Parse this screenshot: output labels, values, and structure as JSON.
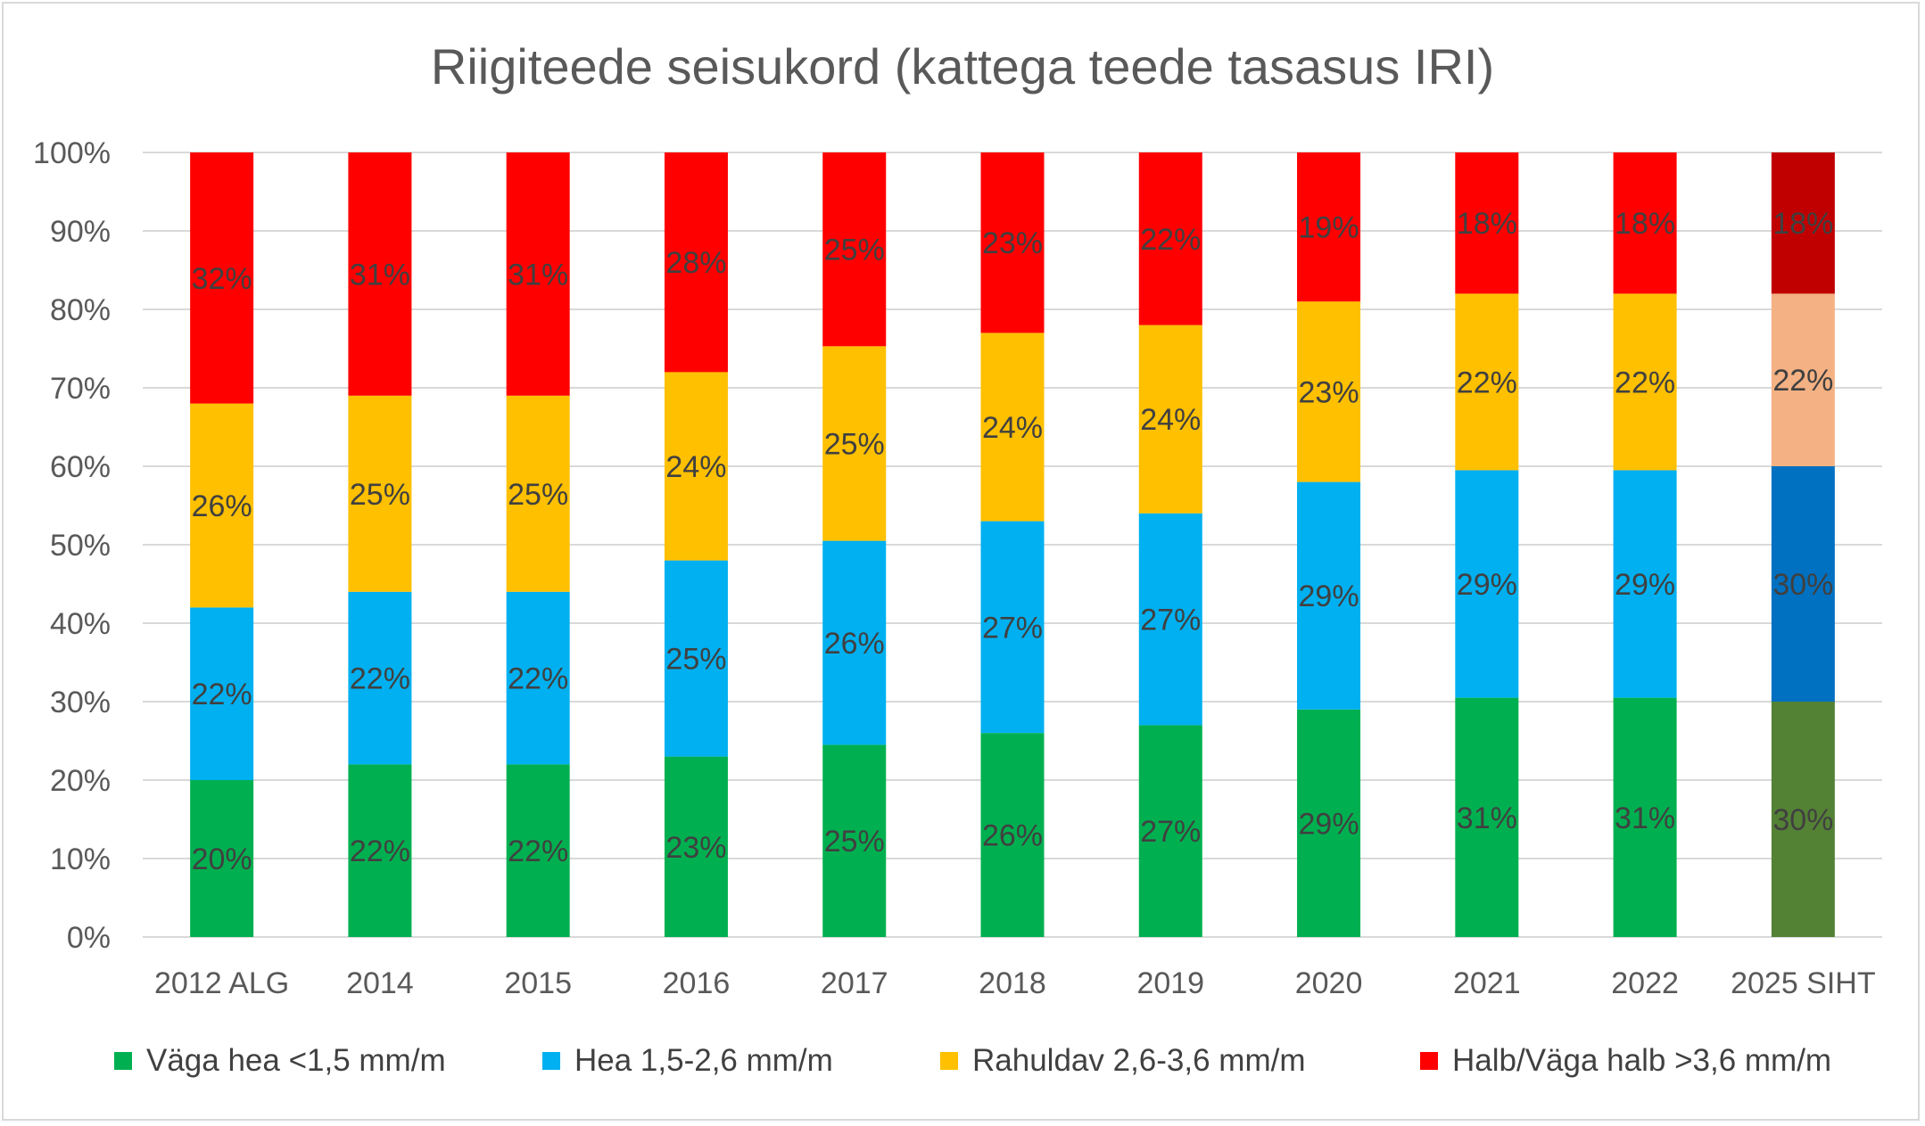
{
  "chart_data": {
    "type": "bar",
    "stacked": true,
    "title": "Riigiteede  seisukord (kattega teede tasasus IRI)",
    "xlabel": "",
    "ylabel": "",
    "ylim": [
      0,
      100
    ],
    "y_ticks": [
      "0%",
      "10%",
      "20%",
      "30%",
      "40%",
      "50%",
      "60%",
      "70%",
      "80%",
      "90%",
      "100%"
    ],
    "grid": true,
    "legend_position": "bottom",
    "categories": [
      "2012 ALG",
      "2014",
      "2015",
      "2016",
      "2017",
      "2018",
      "2019",
      "2020",
      "2021",
      "2022",
      "2025 SIHT"
    ],
    "series": [
      {
        "name": "Väga hea <1,5 mm/m",
        "color": "#00b050",
        "values": [
          20,
          22,
          22,
          23,
          24.5,
          26,
          27,
          29,
          30.5,
          30.5,
          30
        ],
        "labels": [
          "20%",
          "22%",
          "22%",
          "23%",
          "25%",
          "26%",
          "27%",
          "29%",
          "31%",
          "31%",
          "30%"
        ]
      },
      {
        "name": "Hea 1,5-2,6 mm/m",
        "color": "#00b0f0",
        "values": [
          22,
          22,
          22,
          25,
          26,
          27,
          27,
          29,
          29,
          29,
          30
        ],
        "labels": [
          "22%",
          "22%",
          "22%",
          "25%",
          "26%",
          "27%",
          "27%",
          "29%",
          "29%",
          "29%",
          "30%"
        ]
      },
      {
        "name": "Rahuldav 2,6-3,6 mm/m",
        "color": "#ffc000",
        "values": [
          26,
          25,
          25,
          24,
          24.8,
          24,
          24,
          23,
          22.5,
          22.5,
          22
        ],
        "labels": [
          "26%",
          "25%",
          "25%",
          "24%",
          "25%",
          "24%",
          "24%",
          "23%",
          "22%",
          "22%",
          "22%"
        ]
      },
      {
        "name": "Halb/Väga halb >3,6 mm/m",
        "color": "#ff0000",
        "values": [
          32,
          31,
          31,
          28,
          24.7,
          23,
          22,
          19,
          18,
          18,
          18
        ],
        "labels": [
          "32%",
          "31%",
          "31%",
          "28%",
          "25%",
          "23%",
          "22%",
          "19%",
          "18%",
          "18%",
          "18%"
        ]
      }
    ],
    "target_category_colors": [
      "#548235",
      "#0070c0",
      "#f4b183",
      "#c00000"
    ],
    "label_color": "#404040",
    "axis_text_color": "#595959",
    "gridline_color": "#d9d9d9"
  }
}
